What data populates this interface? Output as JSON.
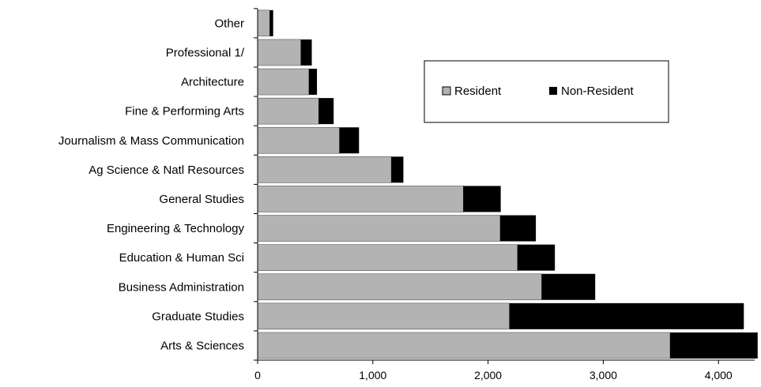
{
  "chart_data": {
    "type": "bar",
    "orientation": "horizontal",
    "stacked": true,
    "categories": [
      "Arts & Sciences",
      "Graduate Studies",
      "Business Administration",
      "Education & Human Sci",
      "Engineering & Technology",
      "General Studies",
      "Ag Science & Natl Resources",
      "Journalism & Mass Communication",
      "Fine & Performing Arts",
      "Architecture",
      "Professional 1/",
      "Other"
    ],
    "series": [
      {
        "name": "Resident",
        "color": "#b3b3b3",
        "values": [
          3580,
          2185,
          2465,
          2255,
          2105,
          1785,
          1160,
          710,
          530,
          445,
          375,
          105
        ]
      },
      {
        "name": "Non-Resident",
        "color": "#000000",
        "values": [
          760,
          2035,
          465,
          325,
          310,
          325,
          105,
          170,
          130,
          70,
          95,
          30
        ]
      }
    ],
    "xlim": [
      0,
      4300
    ],
    "xticks": [
      0,
      1000,
      2000,
      3000,
      4000
    ],
    "xtick_labels": [
      "0",
      "1,000",
      "2,000",
      "3,000",
      "4,000"
    ],
    "legend_position": "upper-right",
    "grid": false,
    "title": "",
    "xlabel": "",
    "ylabel": ""
  }
}
